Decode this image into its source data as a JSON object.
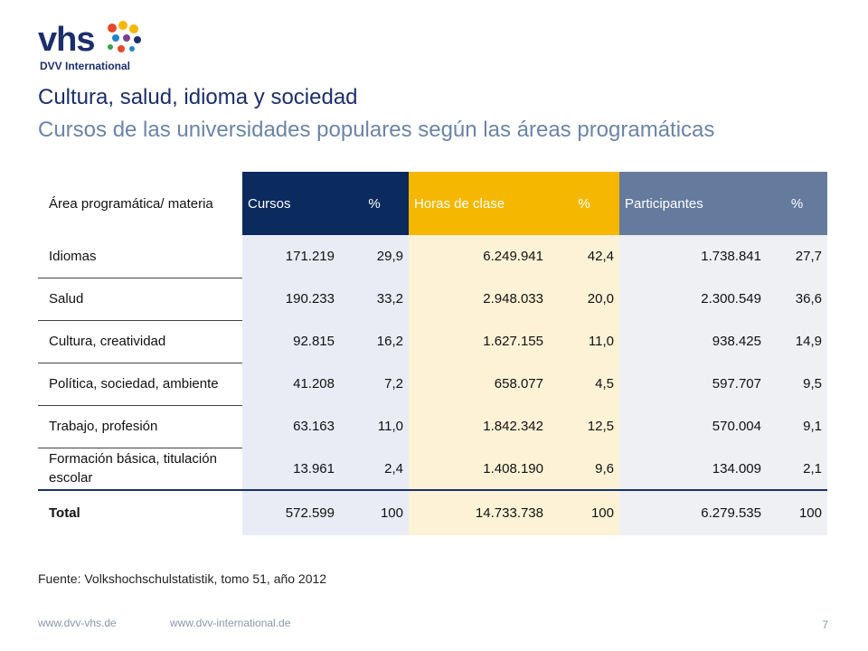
{
  "logo": {
    "word": "vhs",
    "subtext": "DVV International"
  },
  "title": "Cultura, salud, idioma y sociedad",
  "subtitle": "Cursos de las universidades populares según las áreas programáticas",
  "table": {
    "headers": [
      "Área programática/ materia",
      "Cursos",
      "%",
      "Horas de clase",
      "%",
      "Participantes",
      "%"
    ],
    "rows": [
      [
        "Idiomas",
        "171.219",
        "29,9",
        "6.249.941",
        "42,4",
        "1.738.841",
        "27,7"
      ],
      [
        "Salud",
        "190.233",
        "33,2",
        "2.948.033",
        "20,0",
        "2.300.549",
        "36,6"
      ],
      [
        "Cultura, creatividad",
        "92.815",
        "16,2",
        "1.627.155",
        "11,0",
        "938.425",
        "14,9"
      ],
      [
        "Política, sociedad, ambiente",
        "41.208",
        "7,2",
        "658.077",
        "4,5",
        "597.707",
        "9,5"
      ],
      [
        "Trabajo, profesión",
        "63.163",
        "11,0",
        "1.842.342",
        "12,5",
        "570.004",
        "9,1"
      ],
      [
        "Formación básica, titulación escolar",
        "13.961",
        "2,4",
        "1.408.190",
        "9,6",
        "134.009",
        "2,1"
      ],
      [
        "Total",
        "572.599",
        "100",
        "14.733.738",
        "100",
        "6.279.535",
        "100"
      ]
    ]
  },
  "source": "Fuente: Volkshochschulstatistik, tomo 51, año 2012",
  "footer": {
    "link1": "www.dvv-vhs.de",
    "link2": "www.dvv-international.de",
    "page": "7"
  },
  "colors": {
    "navy": "#0b2a5e",
    "yellow": "#f5b700",
    "slate": "#647b9d"
  }
}
